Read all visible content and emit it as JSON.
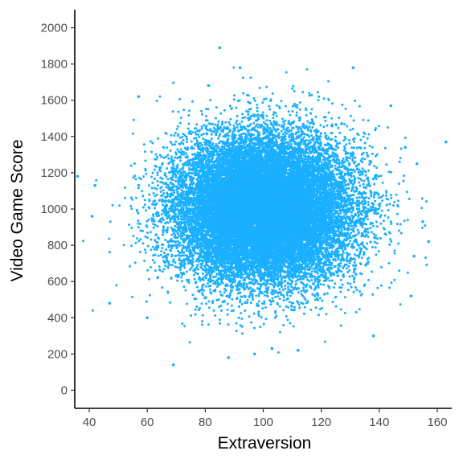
{
  "chart_data": {
    "type": "scatter",
    "title": "",
    "xlabel": "Extraversion",
    "ylabel": "Video Game Score",
    "xlim": [
      35,
      165
    ],
    "ylim": [
      -100,
      2100
    ],
    "x_ticks": [
      40,
      60,
      80,
      100,
      120,
      140,
      160
    ],
    "y_ticks": [
      0,
      200,
      400,
      600,
      800,
      1000,
      1200,
      1400,
      1600,
      1800,
      2000
    ],
    "grid": false,
    "legend": "none",
    "point_color": "#1AAFFF",
    "distribution": {
      "x_mean": 100,
      "x_sd": 15,
      "y_mean": 1000,
      "y_sd": 200,
      "correlation": 0,
      "n_points": 22000
    },
    "outliers": [
      {
        "x": 85,
        "y": 1890
      },
      {
        "x": 163,
        "y": 1370
      },
      {
        "x": 36,
        "y": 1180
      },
      {
        "x": 69,
        "y": 140
      },
      {
        "x": 131,
        "y": 1780
      },
      {
        "x": 92,
        "y": 1780
      },
      {
        "x": 42,
        "y": 1130
      },
      {
        "x": 41,
        "y": 960
      },
      {
        "x": 155,
        "y": 930
      },
      {
        "x": 157,
        "y": 820
      },
      {
        "x": 152,
        "y": 740
      },
      {
        "x": 149,
        "y": 1340
      },
      {
        "x": 47,
        "y": 480
      },
      {
        "x": 153,
        "y": 1250
      },
      {
        "x": 112,
        "y": 220
      },
      {
        "x": 97,
        "y": 200
      },
      {
        "x": 88,
        "y": 180
      },
      {
        "x": 103,
        "y": 230
      },
      {
        "x": 57,
        "y": 1620
      },
      {
        "x": 144,
        "y": 1570
      },
      {
        "x": 151,
        "y": 520
      },
      {
        "x": 138,
        "y": 300
      },
      {
        "x": 60,
        "y": 400
      }
    ]
  }
}
